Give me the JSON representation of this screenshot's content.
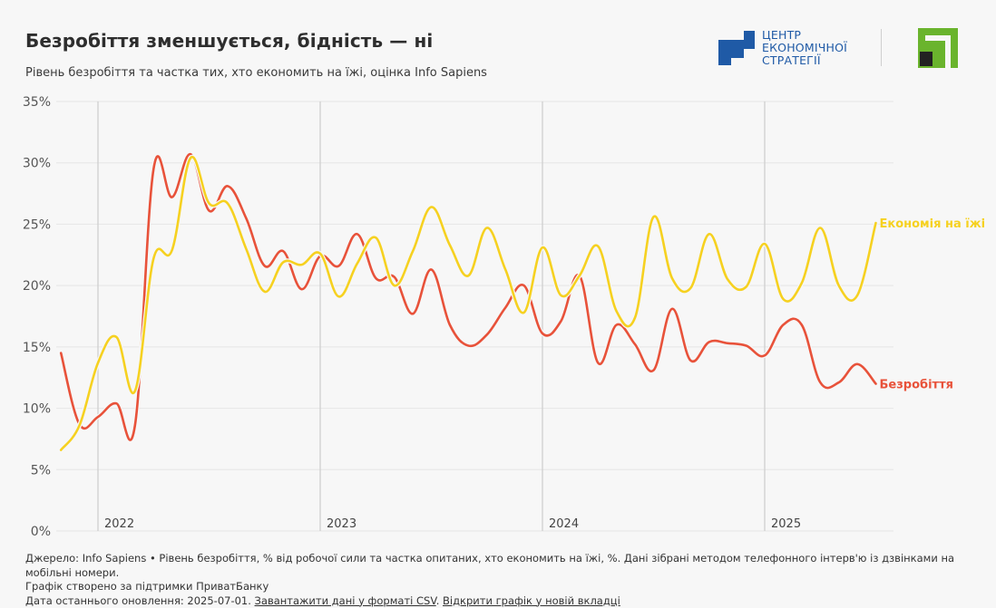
{
  "header": {
    "title": "Безробіття зменшується, бідність — ні",
    "subtitle": "Рівень безробіття та частка тих, хто економить на їжі, оцінка Info Sapiens"
  },
  "logos": {
    "ces": {
      "name": "ces-logo",
      "lines": [
        "ЦЕНТР",
        "ЕКОНОМІЧНОЇ",
        "СТРАТЕГІЇ"
      ],
      "color": "#1f5aa6"
    },
    "privatbank": {
      "name": "privatbank-logo",
      "green": "#6ab42d",
      "dark": "#222222"
    }
  },
  "footer": {
    "line1": "Джерело: Info Sapiens • Рівень безробіття, % від робочої сили та частка опитаних, хто економить на їжі, %. Дані зібрані методом телефонного інтерв'ю із дзвінками на мобільні номери.",
    "line2": "Графік створено за підтримки ПриватБанку",
    "line3_prefix": "Дата останнього оновлення: 2025-07-01. ",
    "csv_link": "Завантажити дані у форматі CSV",
    "sep": ". ",
    "open_link": "Відкрити графік у новій вкладці"
  },
  "chart_data": {
    "type": "line",
    "title": "Безробіття зменшується, бідність — ні",
    "subtitle": "Рівень безробіття та частка тих, хто економить на їжі, оцінка Info Sapiens",
    "xlabel": "",
    "ylabel": "",
    "x_start": "2021-11",
    "x_end": "2025-07",
    "x_frequency": "monthly",
    "x_ticks": [
      "2022",
      "2023",
      "2024",
      "2025"
    ],
    "y_ticks": [
      "0%",
      "5%",
      "10%",
      "15%",
      "20%",
      "25%",
      "30%",
      "35%"
    ],
    "ylim": [
      0,
      35
    ],
    "grid": true,
    "legend": "inline labels at right end of lines",
    "series": [
      {
        "name": "Безробіття",
        "color": "#e8523a",
        "values": [
          14.5,
          8.7,
          9.3,
          10.4,
          8.6,
          29.5,
          27.2,
          30.7,
          26.1,
          28.1,
          25.5,
          21.6,
          22.8,
          19.7,
          22.4,
          21.6,
          24.2,
          20.6,
          20.7,
          17.7,
          21.3,
          16.8,
          15.1,
          16.0,
          18.2,
          20.0,
          16.1,
          17.1,
          20.8,
          13.7,
          16.8,
          15.2,
          13.1,
          18.1,
          13.9,
          15.4,
          15.3,
          15.1,
          14.3,
          16.8,
          16.8,
          12.1,
          12.1,
          13.6,
          12.0
        ]
      },
      {
        "name": "Економія на їжі",
        "color": "#f6d120",
        "values": [
          6.6,
          8.6,
          13.7,
          15.8,
          11.4,
          22.2,
          22.9,
          30.4,
          26.7,
          26.7,
          23.0,
          19.5,
          21.9,
          21.7,
          22.6,
          19.1,
          21.8,
          23.9,
          20.0,
          22.8,
          26.4,
          23.3,
          20.8,
          24.7,
          21.3,
          17.8,
          23.1,
          19.2,
          20.8,
          23.2,
          17.9,
          17.4,
          25.6,
          20.6,
          19.8,
          24.2,
          20.5,
          19.9,
          23.4,
          18.9,
          20.2,
          24.7,
          20.0,
          19.2,
          25.1
        ]
      }
    ]
  }
}
